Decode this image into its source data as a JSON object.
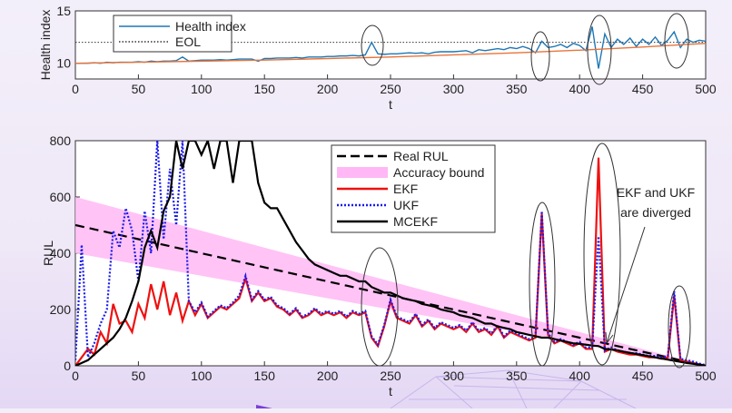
{
  "chart_data": [
    {
      "type": "line",
      "ylabel": "Health index",
      "xlabel": "t",
      "xlim": [
        0,
        500
      ],
      "ylim": [
        8.5,
        15
      ],
      "xticks": [
        0,
        50,
        100,
        150,
        200,
        250,
        300,
        350,
        400,
        450,
        500
      ],
      "yticks": [
        10,
        15
      ],
      "x": [
        0,
        5,
        10,
        15,
        20,
        25,
        30,
        35,
        40,
        45,
        50,
        55,
        60,
        65,
        70,
        75,
        80,
        85,
        90,
        95,
        100,
        105,
        110,
        115,
        120,
        125,
        130,
        135,
        140,
        145,
        150,
        155,
        160,
        165,
        170,
        175,
        180,
        185,
        190,
        195,
        200,
        205,
        210,
        215,
        220,
        225,
        230,
        235,
        240,
        245,
        250,
        255,
        260,
        265,
        270,
        275,
        280,
        285,
        290,
        295,
        300,
        305,
        310,
        315,
        320,
        325,
        330,
        335,
        340,
        345,
        350,
        355,
        360,
        365,
        370,
        375,
        380,
        385,
        390,
        395,
        400,
        405,
        410,
        415,
        420,
        425,
        430,
        435,
        440,
        445,
        450,
        455,
        460,
        465,
        470,
        475,
        480,
        485,
        490,
        495,
        500
      ],
      "series": [
        {
          "name": "Health index",
          "color": "#1f77b4",
          "values": [
            10.0,
            10.0,
            10.0,
            10.05,
            10.0,
            10.1,
            10.05,
            10.1,
            10.1,
            10.1,
            10.15,
            10.1,
            10.2,
            10.15,
            10.2,
            10.2,
            10.25,
            10.6,
            10.2,
            10.25,
            10.3,
            10.3,
            10.3,
            10.35,
            10.3,
            10.35,
            10.4,
            10.4,
            10.4,
            10.2,
            10.45,
            10.45,
            10.5,
            10.5,
            10.5,
            10.55,
            10.5,
            10.6,
            10.6,
            10.6,
            10.65,
            10.65,
            10.7,
            10.7,
            10.75,
            10.7,
            10.8,
            12.0,
            10.9,
            10.85,
            10.9,
            10.9,
            10.95,
            11.0,
            10.95,
            11.0,
            10.9,
            11.05,
            11.1,
            11.1,
            11.1,
            11.15,
            11.2,
            11.0,
            11.3,
            11.2,
            11.3,
            11.4,
            11.3,
            11.5,
            11.4,
            11.6,
            11.4,
            11.0,
            12.1,
            11.5,
            11.6,
            11.8,
            11.5,
            11.9,
            11.7,
            11.2,
            13.5,
            9.5,
            12.8,
            11.5,
            12.3,
            11.8,
            12.4,
            11.6,
            12.3,
            11.8,
            12.5,
            11.7,
            12.2,
            13.0,
            11.5,
            12.3,
            12.0,
            12.2,
            12.1
          ]
        },
        {
          "color": "#e8743b",
          "x": [
            0,
            50,
            100,
            150,
            200,
            250,
            300,
            350,
            400,
            450,
            500
          ],
          "values": [
            10.0,
            10.1,
            10.2,
            10.3,
            10.45,
            10.6,
            10.8,
            11.0,
            11.25,
            11.55,
            11.9
          ]
        }
      ],
      "reference_lines": [
        {
          "name": "EOL",
          "value": 12,
          "color": "#333333"
        }
      ]
    },
    {
      "type": "line",
      "ylabel": "RUL",
      "xlabel": "t",
      "xlim": [
        0,
        500
      ],
      "ylim": [
        0,
        800
      ],
      "xticks": [
        0,
        50,
        100,
        150,
        200,
        250,
        300,
        350,
        400,
        450,
        500
      ],
      "yticks": [
        0,
        200,
        400,
        600,
        800
      ],
      "annotation": [
        "EKF and UKF",
        "are diverged"
      ],
      "x": [
        0,
        5,
        10,
        15,
        20,
        25,
        30,
        35,
        40,
        45,
        50,
        55,
        60,
        65,
        70,
        75,
        80,
        85,
        90,
        95,
        100,
        105,
        110,
        115,
        120,
        125,
        130,
        135,
        140,
        145,
        150,
        155,
        160,
        165,
        170,
        175,
        180,
        185,
        190,
        195,
        200,
        205,
        210,
        215,
        220,
        225,
        230,
        235,
        240,
        245,
        250,
        255,
        260,
        265,
        270,
        275,
        280,
        285,
        290,
        295,
        300,
        305,
        310,
        315,
        320,
        325,
        330,
        335,
        340,
        345,
        350,
        355,
        360,
        365,
        370,
        375,
        380,
        385,
        390,
        395,
        400,
        405,
        410,
        415,
        420,
        425,
        430,
        435,
        440,
        445,
        450,
        455,
        460,
        465,
        470,
        475,
        480,
        485,
        490,
        495,
        500
      ],
      "series": [
        {
          "name": "Real RUL",
          "color": "#000000",
          "style": "dashed",
          "x": [
            0,
            500
          ],
          "values": [
            500,
            0
          ]
        },
        {
          "name": "Accuracy bound",
          "color": "#ffb8f5",
          "style": "band",
          "x": [
            0,
            500
          ],
          "values": [
            600,
            0
          ],
          "lower": [
            400,
            0
          ]
        },
        {
          "name": "EKF",
          "color": "#ee1111",
          "style": "solid",
          "values": [
            0,
            30,
            60,
            40,
            120,
            80,
            220,
            150,
            160,
            120,
            220,
            170,
            290,
            200,
            300,
            180,
            260,
            160,
            230,
            180,
            220,
            170,
            190,
            210,
            200,
            220,
            240,
            310,
            230,
            260,
            230,
            240,
            210,
            200,
            180,
            200,
            170,
            180,
            200,
            180,
            190,
            180,
            190,
            170,
            190,
            180,
            190,
            100,
            70,
            140,
            230,
            170,
            160,
            150,
            180,
            140,
            160,
            130,
            150,
            140,
            130,
            140,
            120,
            150,
            120,
            130,
            110,
            140,
            100,
            120,
            110,
            100,
            90,
            100,
            540,
            110,
            80,
            90,
            80,
            70,
            80,
            60,
            60,
            740,
            50,
            60,
            50,
            45,
            40,
            40,
            35,
            30,
            30,
            25,
            30,
            250,
            20,
            15,
            10,
            5,
            0
          ]
        },
        {
          "name": "UKF",
          "color": "#1a1aee",
          "style": "dotted",
          "values": [
            20,
            430,
            30,
            80,
            150,
            200,
            480,
            420,
            560,
            480,
            300,
            550,
            400,
            800,
            450,
            700,
            500,
            800,
            230,
            190,
            225,
            175,
            195,
            215,
            205,
            225,
            250,
            320,
            235,
            265,
            235,
            245,
            215,
            205,
            185,
            205,
            175,
            185,
            205,
            185,
            195,
            185,
            195,
            175,
            195,
            185,
            195,
            105,
            75,
            145,
            235,
            175,
            165,
            155,
            185,
            145,
            165,
            135,
            155,
            145,
            135,
            145,
            125,
            155,
            125,
            135,
            115,
            145,
            105,
            125,
            115,
            105,
            95,
            105,
            550,
            115,
            85,
            95,
            85,
            75,
            85,
            65,
            65,
            460,
            55,
            65,
            55,
            50,
            45,
            45,
            40,
            35,
            35,
            30,
            35,
            265,
            25,
            20,
            15,
            8,
            2
          ]
        },
        {
          "name": "MCEKF",
          "color": "#000000",
          "style": "solid",
          "values": [
            0,
            10,
            20,
            40,
            60,
            80,
            100,
            130,
            170,
            230,
            300,
            420,
            480,
            420,
            550,
            600,
            800,
            700,
            800,
            800,
            750,
            800,
            700,
            800,
            800,
            650,
            800,
            800,
            800,
            650,
            580,
            560,
            560,
            520,
            480,
            440,
            410,
            380,
            360,
            350,
            340,
            330,
            320,
            320,
            310,
            300,
            300,
            280,
            270,
            260,
            260,
            250,
            240,
            235,
            230,
            220,
            215,
            210,
            200,
            195,
            190,
            180,
            175,
            170,
            160,
            150,
            150,
            140,
            135,
            130,
            120,
            115,
            110,
            105,
            100,
            100,
            95,
            90,
            85,
            80,
            78,
            75,
            72,
            70,
            60,
            58,
            55,
            50,
            46,
            42,
            38,
            34,
            30,
            26,
            22,
            18,
            14,
            10,
            7,
            4,
            0
          ]
        }
      ]
    }
  ]
}
